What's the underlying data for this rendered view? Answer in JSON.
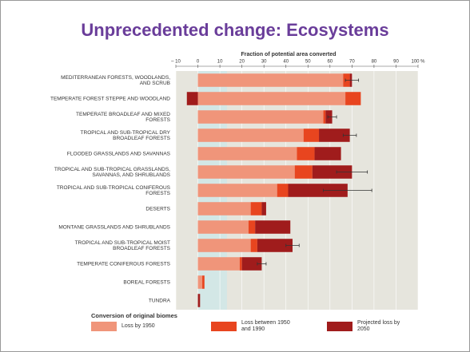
{
  "chart_data": {
    "type": "stacked_barh",
    "title": "Unprecedented change:  Ecosystems",
    "x_label": "Fraction of potential area converted",
    "categories": [
      "MEDITERRANEAN FORESTS, WOODLANDS, AND SCRUB",
      "TEMPERATE FOREST STEPPE AND WOODLAND",
      "TEMPERATE BROADLEAF AND MIXED FORESTS",
      "TROPICAL AND SUB-TROPICAL DRY BROADLEAF FORESTS",
      "FLOODED GRASSLANDS AND SAVANNAS",
      "TROPICAL AND SUB-TROPICAL GRASSLANDS, SAVANNAS, AND SHRUBLANDS",
      "TROPICAL AND SUB-TROPICAL CONIFEROUS FORESTS",
      "DESERTS",
      "MONTANE GRASSLANDS AND SHRUBLANDS",
      "TROPICAL AND SUB-TROPICAL MOIST BROADLEAF FORESTS",
      "TEMPERATE CONIFEROUS FORESTS",
      "BOREAL FORESTS",
      "TUNDRA"
    ],
    "series": [
      {
        "name": "Loss by 1950",
        "color": "#f0957a",
        "values": [
          66,
          67,
          57,
          48,
          45,
          44,
          36,
          24,
          23,
          24,
          19,
          2,
          0
        ]
      },
      {
        "name": "Loss between 1950 and 1990",
        "color": "#e8451f",
        "values": [
          3,
          7,
          1,
          7,
          8,
          8,
          5,
          5,
          3,
          3,
          1,
          1,
          0
        ]
      },
      {
        "name": "Projected loss by 2050",
        "color": "#a01c1c",
        "values": [
          1,
          -5,
          3,
          14,
          12,
          18,
          27,
          2,
          16,
          16,
          9,
          0,
          1
        ]
      }
    ],
    "errors": [
      3,
      null,
      2,
      3,
      null,
      7,
      11,
      null,
      null,
      3,
      2,
      null,
      null
    ],
    "legend_title": "Conversion of original biomes",
    "xlim": [
      -10,
      100
    ],
    "xticks": [
      {
        "value": -10,
        "label": "– 10"
      },
      0,
      10,
      20,
      30,
      40,
      50,
      60,
      70,
      80,
      90,
      {
        "value": 100,
        "label": "100 %"
      }
    ]
  }
}
